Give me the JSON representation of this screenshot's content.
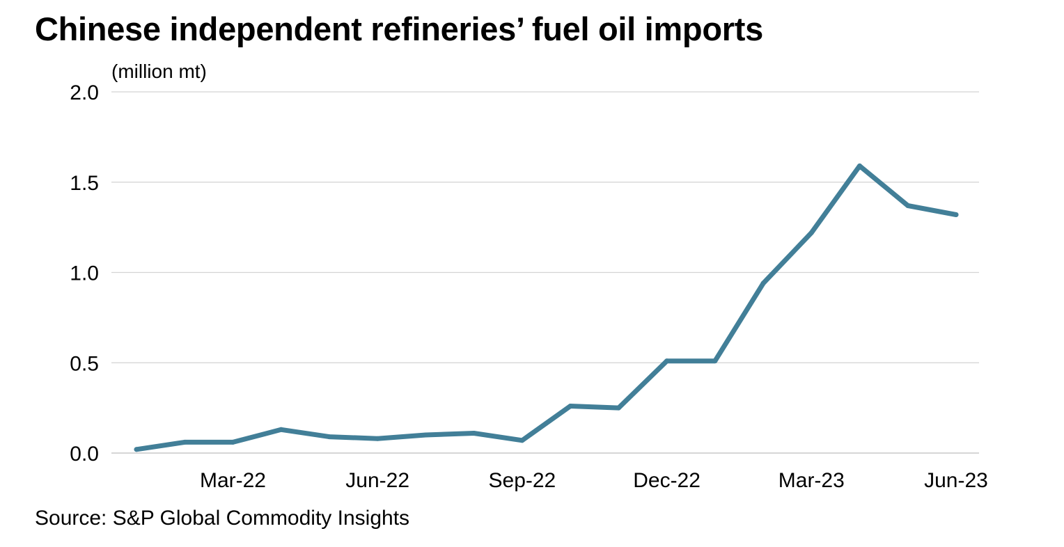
{
  "title": "Chinese independent refineries’ fuel oil imports",
  "source": "Source: S&P Global Commodity Insights",
  "colors": {
    "line": "#427f98",
    "grid": "#d3d3d3",
    "text": "#000000"
  },
  "chart_data": {
    "type": "line",
    "title": "Chinese independent refineries’ fuel oil imports",
    "ylabel": "(million mt)",
    "xlabel": "",
    "ylim": [
      0,
      2.0
    ],
    "yticks": [
      0.0,
      0.5,
      1.0,
      1.5,
      2.0
    ],
    "ytick_labels": [
      "0.0",
      "0.5",
      "1.0",
      "1.5",
      "2.0"
    ],
    "grid": true,
    "x": [
      "Jan-22",
      "Feb-22",
      "Mar-22",
      "Apr-22",
      "May-22",
      "Jun-22",
      "Jul-22",
      "Aug-22",
      "Sep-22",
      "Oct-22",
      "Nov-22",
      "Dec-22",
      "Jan-23",
      "Feb-23",
      "Mar-23",
      "Apr-23",
      "May-23",
      "Jun-23"
    ],
    "xtick_labels": [
      "Mar-22",
      "Jun-22",
      "Sep-22",
      "Dec-22",
      "Mar-23",
      "Jun-23"
    ],
    "xtick_indices": [
      2,
      5,
      8,
      11,
      14,
      17
    ],
    "series": [
      {
        "name": "Fuel oil imports",
        "values": [
          0.02,
          0.06,
          0.06,
          0.13,
          0.09,
          0.08,
          0.1,
          0.11,
          0.07,
          0.26,
          0.25,
          0.51,
          0.51,
          0.94,
          1.22,
          1.59,
          1.37,
          1.32
        ]
      }
    ]
  }
}
